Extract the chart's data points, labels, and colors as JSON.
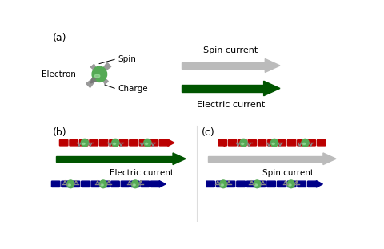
{
  "bg_color": "#ffffff",
  "electron_color": "#55aa55",
  "electron_highlight": "#99dd99",
  "gray_color": "#aaaaaa",
  "gray_dark": "#888888",
  "green_color": "#005500",
  "red_color": "#bb0000",
  "blue_color": "#000088",
  "label_a": "(a)",
  "label_b": "(b)",
  "label_c": "(c)",
  "text_spin": "Spin",
  "text_charge": "Charge",
  "text_electron": "Electron",
  "text_spin_current": "Spin current",
  "text_electric_current": "Electric current",
  "text_spin_current_c": "Spin current"
}
